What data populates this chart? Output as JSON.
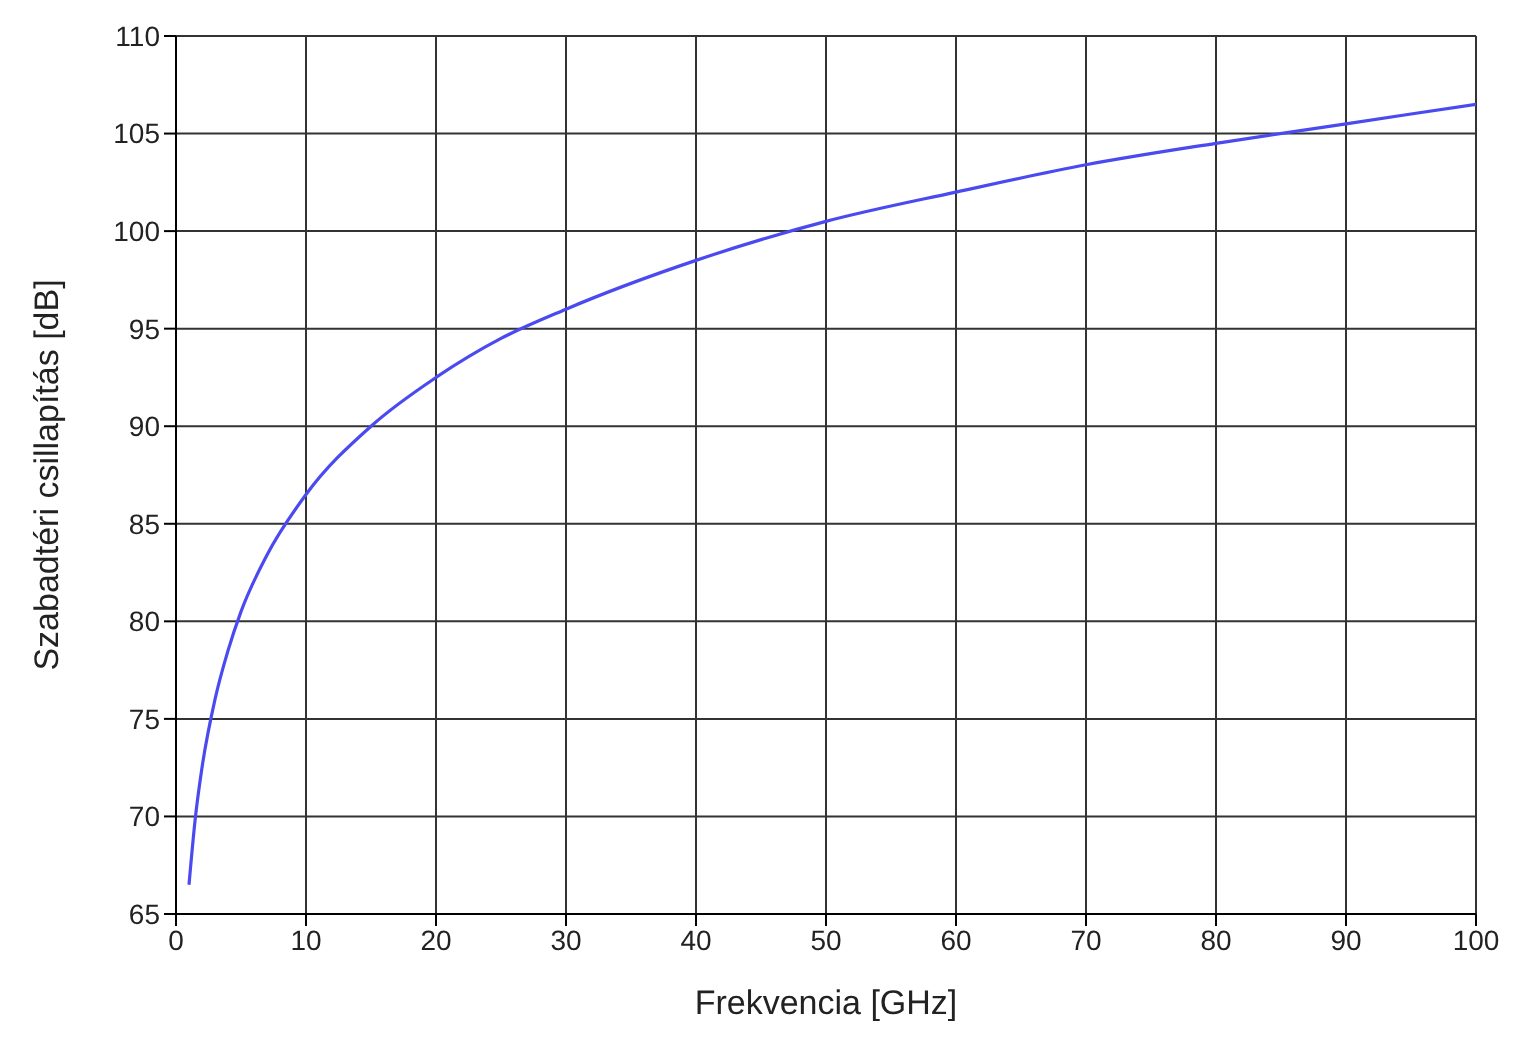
{
  "chart_data": {
    "type": "line",
    "xlabel": "Frekvencia [GHz]",
    "ylabel": "Szabadtéri csillapítás [dB]",
    "x": [
      1,
      1.5,
      2,
      3,
      4,
      5,
      7,
      10,
      15,
      20,
      25,
      30,
      40,
      50,
      60,
      70,
      80,
      90,
      100
    ],
    "series": [
      {
        "color": "#4a4af0",
        "values": [
          66.5,
          70,
          72.5,
          76,
          78.5,
          80.5,
          83.4,
          86.5,
          90,
          92.5,
          94.5,
          96,
          98.5,
          100.5,
          102,
          103.4,
          104.5,
          105.5,
          106.5
        ]
      }
    ],
    "xlim": [
      0,
      100
    ],
    "xticks": [
      0,
      10,
      20,
      30,
      40,
      50,
      60,
      70,
      80,
      90,
      100
    ],
    "ylim": [
      65,
      110
    ],
    "yticks": [
      65,
      70,
      75,
      80,
      85,
      90,
      95,
      100,
      105,
      110
    ],
    "grid": true,
    "marker": "none",
    "line_style": "solid"
  }
}
